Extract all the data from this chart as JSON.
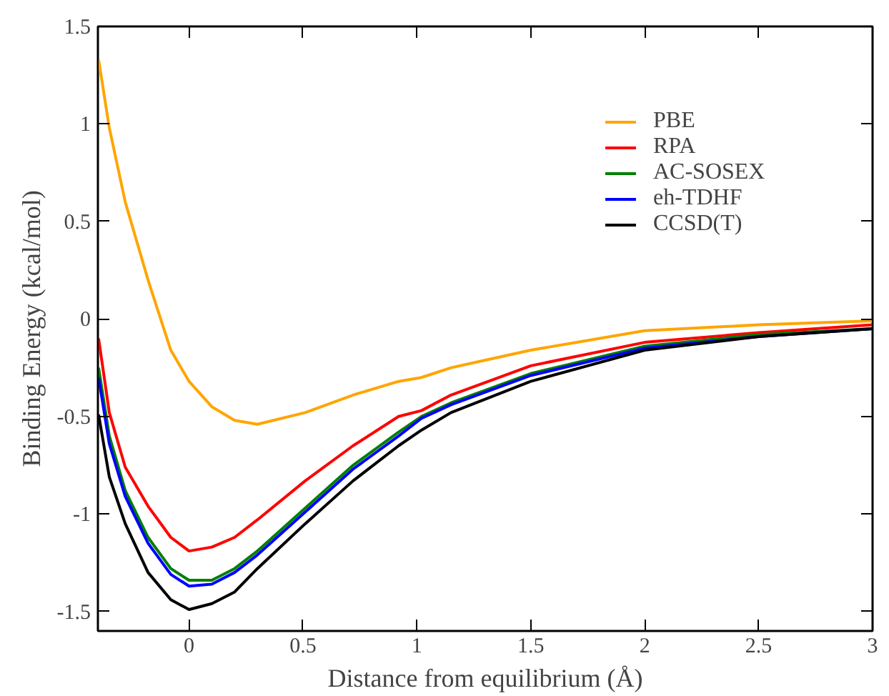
{
  "chart_data": {
    "type": "line",
    "xlabel": "Distance from equilibrium (Å)",
    "ylabel": "Binding Energy (kcal/mol)",
    "x": [
      -0.397,
      -0.35,
      -0.28,
      -0.18,
      -0.08,
      0.0,
      0.1,
      0.2,
      0.3,
      0.51,
      0.72,
      0.92,
      1.02,
      1.15,
      1.5,
      2.0,
      2.5,
      3.0
    ],
    "series": [
      {
        "name": "PBE",
        "color": "#ffa500",
        "values": [
          1.33,
          0.98,
          0.6,
          0.2,
          -0.16,
          -0.32,
          -0.45,
          -0.52,
          -0.54,
          -0.48,
          -0.39,
          -0.32,
          -0.3,
          -0.25,
          -0.16,
          -0.06,
          -0.03,
          -0.01
        ]
      },
      {
        "name": "RPA",
        "color": "#ff0000",
        "values": [
          -0.1,
          -0.48,
          -0.76,
          -0.96,
          -1.12,
          -1.19,
          -1.17,
          -1.12,
          -1.03,
          -0.83,
          -0.65,
          -0.5,
          -0.47,
          -0.39,
          -0.24,
          -0.12,
          -0.07,
          -0.03
        ]
      },
      {
        "name": "AC-SOSEX",
        "color": "#008000",
        "values": [
          -0.25,
          -0.6,
          -0.88,
          -1.12,
          -1.28,
          -1.34,
          -1.34,
          -1.28,
          -1.19,
          -0.97,
          -0.75,
          -0.58,
          -0.5,
          -0.43,
          -0.28,
          -0.14,
          -0.08,
          -0.05
        ]
      },
      {
        "name": "eh-TDHF",
        "color": "#0000ff",
        "values": [
          -0.3,
          -0.64,
          -0.91,
          -1.15,
          -1.31,
          -1.37,
          -1.36,
          -1.3,
          -1.21,
          -0.99,
          -0.77,
          -0.6,
          -0.51,
          -0.44,
          -0.29,
          -0.15,
          -0.09,
          -0.05
        ]
      },
      {
        "name": "CCSD(T)",
        "color": "#000000",
        "values": [
          -0.49,
          -0.81,
          -1.05,
          -1.3,
          -1.44,
          -1.49,
          -1.46,
          -1.4,
          -1.28,
          -1.05,
          -0.83,
          -0.65,
          -0.57,
          -0.48,
          -0.32,
          -0.16,
          -0.09,
          -0.05
        ]
      }
    ],
    "xlim": [
      -0.4,
      3
    ],
    "ylim": [
      -1.6,
      1.5
    ],
    "xticks": [
      0,
      0.5,
      1,
      1.5,
      2,
      2.5,
      3
    ],
    "yticks": [
      -1.5,
      -1,
      -0.5,
      0,
      0.5,
      1,
      1.5
    ],
    "grid": false,
    "legend": "top right",
    "marker": "none",
    "line_style": "solid"
  }
}
